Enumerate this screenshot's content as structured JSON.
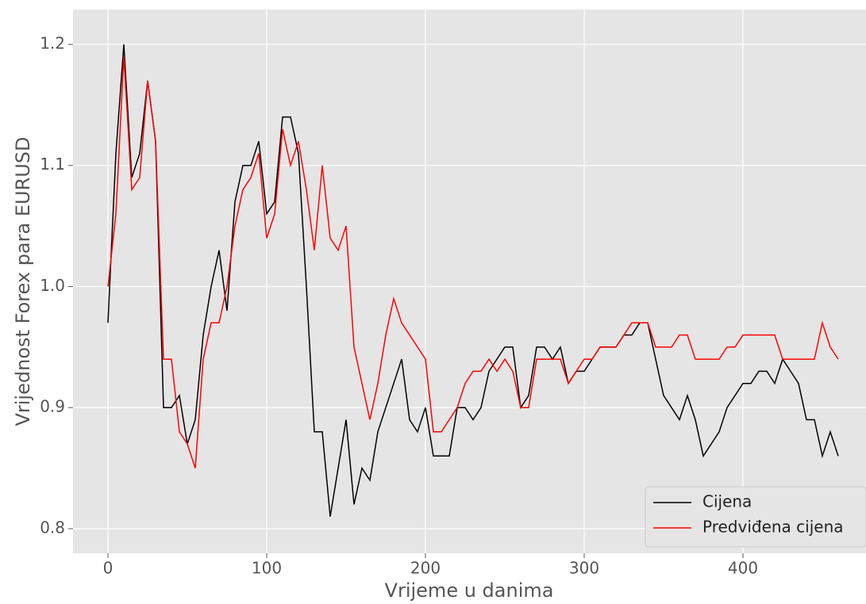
{
  "chart_data": {
    "type": "line",
    "xlabel": "Vrijeme u danima",
    "ylabel": "Vrijednost Forex para EURUSD",
    "x": [
      0,
      5,
      10,
      15,
      20,
      25,
      30,
      35,
      40,
      45,
      50,
      55,
      60,
      65,
      70,
      75,
      80,
      85,
      90,
      95,
      100,
      105,
      110,
      115,
      120,
      125,
      130,
      135,
      140,
      145,
      150,
      155,
      160,
      165,
      170,
      175,
      180,
      185,
      190,
      195,
      200,
      205,
      210,
      215,
      220,
      225,
      230,
      235,
      240,
      245,
      250,
      255,
      260,
      265,
      270,
      275,
      280,
      285,
      290,
      295,
      300,
      305,
      310,
      315,
      320,
      325,
      330,
      335,
      340,
      345,
      350,
      355,
      360,
      365,
      370,
      375,
      380,
      385,
      390,
      395,
      400,
      405,
      410,
      415,
      420,
      425,
      430,
      435,
      440,
      445,
      450,
      455,
      460
    ],
    "series": [
      {
        "name": "Cijena",
        "color": "#000000",
        "values": [
          0.97,
          1.11,
          1.2,
          1.09,
          1.11,
          1.17,
          1.12,
          0.9,
          0.9,
          0.91,
          0.87,
          0.89,
          0.96,
          1.0,
          1.03,
          0.98,
          1.07,
          1.1,
          1.1,
          1.12,
          1.06,
          1.07,
          1.14,
          1.14,
          1.11,
          1.0,
          0.88,
          0.88,
          0.81,
          0.85,
          0.89,
          0.82,
          0.85,
          0.84,
          0.88,
          0.9,
          0.92,
          0.94,
          0.89,
          0.88,
          0.9,
          0.86,
          0.86,
          0.86,
          0.9,
          0.9,
          0.89,
          0.9,
          0.93,
          0.94,
          0.95,
          0.95,
          0.9,
          0.91,
          0.95,
          0.95,
          0.94,
          0.95,
          0.92,
          0.93,
          0.93,
          0.94,
          0.95,
          0.95,
          0.95,
          0.96,
          0.96,
          0.97,
          0.97,
          0.94,
          0.91,
          0.9,
          0.89,
          0.91,
          0.89,
          0.86,
          0.87,
          0.88,
          0.9,
          0.91,
          0.92,
          0.92,
          0.93,
          0.93,
          0.92,
          0.94,
          0.93,
          0.92,
          0.89,
          0.89,
          0.86,
          0.88,
          0.86
        ]
      },
      {
        "name": "Predviđena cijena",
        "color": "#ff0000",
        "values": [
          1.0,
          1.06,
          1.19,
          1.08,
          1.09,
          1.17,
          1.12,
          0.94,
          0.94,
          0.88,
          0.87,
          0.85,
          0.94,
          0.97,
          0.97,
          1.0,
          1.05,
          1.08,
          1.09,
          1.11,
          1.04,
          1.06,
          1.13,
          1.1,
          1.12,
          1.08,
          1.03,
          1.1,
          1.04,
          1.03,
          1.05,
          0.95,
          0.92,
          0.89,
          0.92,
          0.96,
          0.99,
          0.97,
          0.96,
          0.95,
          0.94,
          0.88,
          0.88,
          0.89,
          0.9,
          0.92,
          0.93,
          0.93,
          0.94,
          0.93,
          0.94,
          0.93,
          0.9,
          0.9,
          0.94,
          0.94,
          0.94,
          0.94,
          0.92,
          0.93,
          0.94,
          0.94,
          0.95,
          0.95,
          0.95,
          0.96,
          0.97,
          0.97,
          0.97,
          0.95,
          0.95,
          0.95,
          0.96,
          0.96,
          0.94,
          0.94,
          0.94,
          0.94,
          0.95,
          0.95,
          0.96,
          0.96,
          0.96,
          0.96,
          0.96,
          0.94,
          0.94,
          0.94,
          0.94,
          0.94,
          0.97,
          0.95,
          0.94
        ]
      }
    ],
    "xlim": [
      -22,
      477.5
    ],
    "ylim": [
      0.7797,
      1.2288
    ],
    "xticks": [
      0,
      100,
      200,
      300,
      400
    ],
    "yticks": [
      0.8,
      0.9,
      {
        "value": 1.0,
        "label": "1.0"
      },
      1.1,
      1.2
    ],
    "grid": true,
    "legend": "lower right"
  }
}
